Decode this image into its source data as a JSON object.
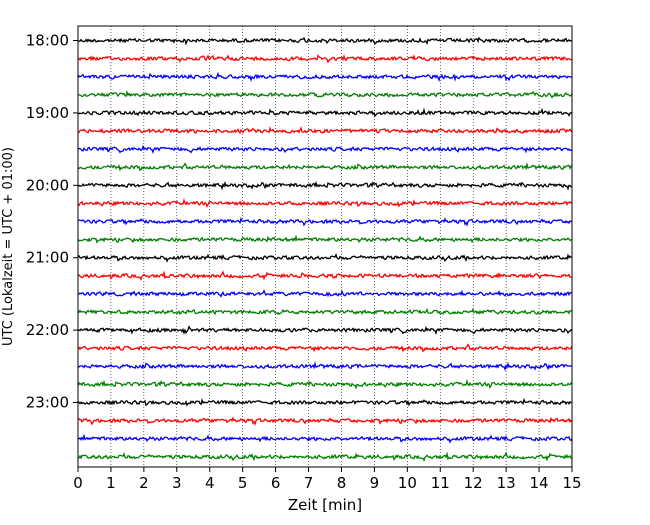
{
  "chart_data": {
    "type": "line",
    "subtype": "seismogram helicorder",
    "xlabel": "Zeit  [min]",
    "ylabel": "UTC (Lokalzeit = UTC + 01:00)",
    "xlim": [
      0,
      15
    ],
    "x_ticks": [
      "0",
      "1",
      "2",
      "3",
      "4",
      "5",
      "6",
      "7",
      "8",
      "9",
      "10",
      "11",
      "12",
      "13",
      "14",
      "15"
    ],
    "y_ticks": [
      "18:00",
      "19:00",
      "20:00",
      "21:00",
      "22:00",
      "23:00"
    ],
    "traces_per_hour": 4,
    "trace_count": 24,
    "trace_colors": [
      "#000000",
      "#ff0000",
      "#0000ff",
      "#008000"
    ],
    "grid": "vertical dotted at each minute"
  }
}
